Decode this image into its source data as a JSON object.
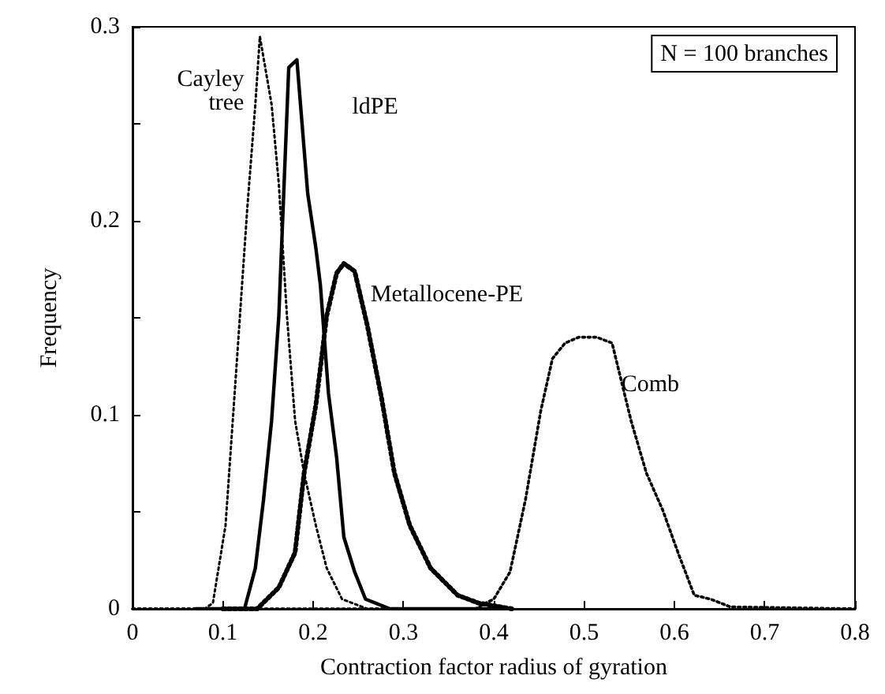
{
  "chart_data": {
    "type": "line",
    "xlabel": "Contraction factor radius of gyration",
    "ylabel": "Frequency",
    "annotations": [
      "N = 100 branches"
    ],
    "xlim": [
      0,
      0.8
    ],
    "xticks": [
      0,
      0.1,
      0.2,
      0.3,
      0.4,
      0.5,
      0.6,
      0.7,
      0.8
    ],
    "ylim": [
      0,
      0.3
    ],
    "yticks": [
      0,
      {
        "value": 0.05,
        "label": null
      },
      0.1,
      {
        "value": 0.15,
        "label": null
      },
      0.2,
      {
        "value": 0.25,
        "label": null
      },
      0.3
    ],
    "grid": false,
    "legend": false,
    "marker": "none",
    "series": [
      {
        "name": "Cayley tree",
        "color": "#000000",
        "line_style": "dotted",
        "x": [
          0,
          0.08,
          0.089,
          0.103,
          0.115,
          0.127,
          0.136,
          0.141,
          0.154,
          0.162,
          0.171,
          0.18,
          0.19,
          0.203,
          0.215,
          0.232,
          0.26,
          0.4
        ],
        "values": [
          0,
          0,
          0.003,
          0.043,
          0.124,
          0.206,
          0.26,
          0.295,
          0.26,
          0.219,
          0.151,
          0.097,
          0.07,
          0.043,
          0.021,
          0.005,
          0,
          0
        ]
      },
      {
        "name": "ldPE",
        "color": "#000000",
        "line_style": "solid",
        "x": [
          0.07,
          0.124,
          0.136,
          0.145,
          0.154,
          0.162,
          0.173,
          0.182,
          0.194,
          0.203,
          0.208,
          0.217,
          0.226,
          0.234,
          0.246,
          0.258,
          0.285,
          0.42
        ],
        "values": [
          0,
          0,
          0.021,
          0.056,
          0.097,
          0.151,
          0.279,
          0.283,
          0.214,
          0.186,
          0.167,
          0.111,
          0.078,
          0.037,
          0.019,
          0.005,
          0,
          0
        ]
      },
      {
        "name": "Metallocene-PE",
        "color": "#000000",
        "line_style": "dotted",
        "x": [
          0.1,
          0.138,
          0.162,
          0.18,
          0.19,
          0.203,
          0.215,
          0.226,
          0.234,
          0.246,
          0.26,
          0.276,
          0.29,
          0.307,
          0.33,
          0.36,
          0.383,
          0.42
        ],
        "values": [
          0,
          0,
          0.011,
          0.029,
          0.07,
          0.105,
          0.151,
          0.173,
          0.178,
          0.174,
          0.146,
          0.108,
          0.07,
          0.043,
          0.021,
          0.007,
          0.003,
          0
        ]
      },
      {
        "name": "Comb",
        "color": "#000000",
        "line_style": "dotted",
        "x": [
          0,
          0.38,
          0.391,
          0.4,
          0.418,
          0.435,
          0.452,
          0.465,
          0.479,
          0.494,
          0.514,
          0.531,
          0.552,
          0.569,
          0.587,
          0.604,
          0.622,
          0.64,
          0.662,
          0.8
        ],
        "values": [
          0,
          0,
          0.003,
          0.005,
          0.019,
          0.056,
          0.102,
          0.129,
          0.137,
          0.14,
          0.14,
          0.137,
          0.097,
          0.07,
          0.051,
          0.029,
          0.007,
          0.005,
          0.001,
          0
        ]
      }
    ]
  }
}
